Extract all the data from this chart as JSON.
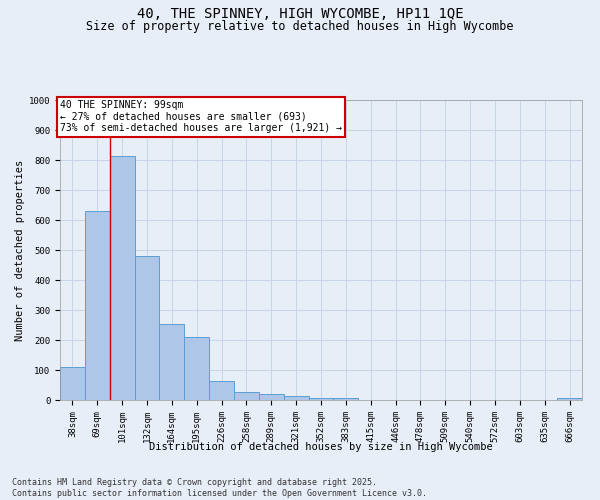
{
  "title_line1": "40, THE SPINNEY, HIGH WYCOMBE, HP11 1QE",
  "title_line2": "Size of property relative to detached houses in High Wycombe",
  "xlabel": "Distribution of detached houses by size in High Wycombe",
  "ylabel": "Number of detached properties",
  "categories": [
    "38sqm",
    "69sqm",
    "101sqm",
    "132sqm",
    "164sqm",
    "195sqm",
    "226sqm",
    "258sqm",
    "289sqm",
    "321sqm",
    "352sqm",
    "383sqm",
    "415sqm",
    "446sqm",
    "478sqm",
    "509sqm",
    "540sqm",
    "572sqm",
    "603sqm",
    "635sqm",
    "666sqm"
  ],
  "values": [
    110,
    630,
    815,
    480,
    255,
    210,
    65,
    27,
    20,
    14,
    8,
    6,
    0,
    0,
    0,
    0,
    0,
    0,
    0,
    0,
    8
  ],
  "bar_color": "#aec6e8",
  "bar_edge_color": "#5a9fd4",
  "vline_x": 1.5,
  "annotation_text": "40 THE SPINNEY: 99sqm\n← 27% of detached houses are smaller (693)\n73% of semi-detached houses are larger (1,921) →",
  "annotation_box_facecolor": "#ffffff",
  "annotation_box_edgecolor": "#cc0000",
  "vline_color": "#cc0000",
  "grid_color": "#c8d4e8",
  "background_color": "#e8eef8",
  "ylim": [
    0,
    1000
  ],
  "yticks": [
    0,
    100,
    200,
    300,
    400,
    500,
    600,
    700,
    800,
    900,
    1000
  ],
  "footnote": "Contains HM Land Registry data © Crown copyright and database right 2025.\nContains public sector information licensed under the Open Government Licence v3.0.",
  "title_fontsize": 10,
  "subtitle_fontsize": 8.5,
  "xlabel_fontsize": 7.5,
  "ylabel_fontsize": 7.5,
  "tick_fontsize": 6.5,
  "annotation_fontsize": 7,
  "footnote_fontsize": 6
}
